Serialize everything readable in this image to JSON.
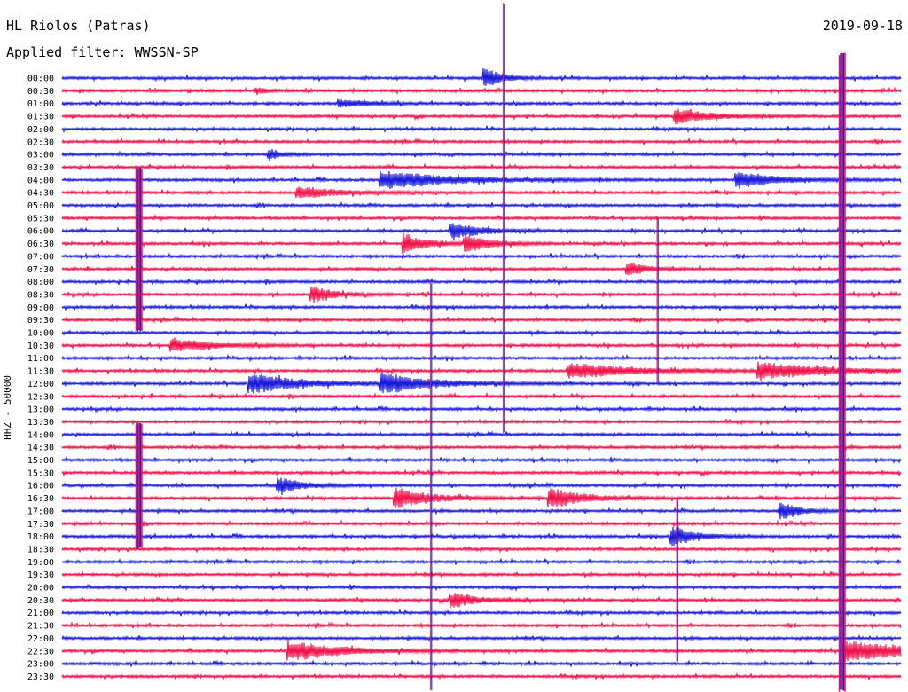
{
  "header": {
    "station": "HL Riolos (Patras)",
    "filter": "Applied filter: WWSSN-SP",
    "date": "2019-09-18",
    "channel": "HHZ - 50000"
  },
  "colors": {
    "blue": "#1a1adb",
    "red": "#f0124a",
    "text": "#000000"
  },
  "chart_data": {
    "type": "line",
    "title": "HL Riolos (Patras)",
    "subtitle": "Applied filter: WWSSN-SP",
    "date": "2019-09-18",
    "ylabel": "HHZ - 50000",
    "rows": [
      "00:00",
      "00:30",
      "01:00",
      "01:30",
      "02:00",
      "02:30",
      "03:00",
      "03:30",
      "04:00",
      "04:30",
      "05:00",
      "05:30",
      "06:00",
      "06:30",
      "07:00",
      "07:30",
      "08:00",
      "08:30",
      "09:00",
      "09:30",
      "10:00",
      "10:30",
      "11:00",
      "11:30",
      "12:00",
      "12:30",
      "13:00",
      "13:30",
      "14:00",
      "14:30",
      "15:00",
      "15:30",
      "16:00",
      "16:30",
      "17:00",
      "17:30",
      "18:00",
      "18:30",
      "19:00",
      "19:30",
      "20:00",
      "20:30",
      "21:00",
      "21:30",
      "22:00",
      "22:30",
      "23:00",
      "23:30"
    ],
    "row_duration_min": 30,
    "series_colors": [
      "blue",
      "red"
    ],
    "events": [
      {
        "row": 0,
        "minute": 15.2,
        "amp": 1.0,
        "dur": 0.6
      },
      {
        "row": 1,
        "minute": 7.0,
        "amp": 0.3,
        "dur": 0.4
      },
      {
        "row": 2,
        "minute": 10.0,
        "amp": 0.35,
        "dur": 1.2
      },
      {
        "row": 3,
        "minute": 22.0,
        "amp": 0.8,
        "dur": 1.2
      },
      {
        "row": 6,
        "minute": 7.5,
        "amp": 0.5,
        "dur": 0.4
      },
      {
        "row": 8,
        "minute": 11.5,
        "amp": 0.9,
        "dur": 2.5
      },
      {
        "row": 8,
        "minute": 24.2,
        "amp": 0.8,
        "dur": 1.5
      },
      {
        "row": 9,
        "minute": 8.5,
        "amp": 0.6,
        "dur": 1.5
      },
      {
        "row": 12,
        "minute": 14.0,
        "amp": 0.8,
        "dur": 1.0
      },
      {
        "row": 13,
        "minute": 12.3,
        "amp": 1.0,
        "dur": 0.8
      },
      {
        "row": 13,
        "minute": 14.5,
        "amp": 0.9,
        "dur": 0.8
      },
      {
        "row": 15,
        "minute": 20.3,
        "amp": 0.7,
        "dur": 0.6
      },
      {
        "row": 17,
        "minute": 9.0,
        "amp": 0.8,
        "dur": 0.8
      },
      {
        "row": 21,
        "minute": 4.0,
        "amp": 0.7,
        "dur": 1.3
      },
      {
        "row": 23,
        "minute": 18.2,
        "amp": 0.8,
        "dur": 2.2
      },
      {
        "row": 23,
        "minute": 25.0,
        "amp": 0.9,
        "dur": 2.2
      },
      {
        "row": 24,
        "minute": 6.8,
        "amp": 1.0,
        "dur": 1.8
      },
      {
        "row": 24,
        "minute": 11.5,
        "amp": 0.9,
        "dur": 1.8
      },
      {
        "row": 32,
        "minute": 7.8,
        "amp": 0.8,
        "dur": 0.8
      },
      {
        "row": 33,
        "minute": 12.0,
        "amp": 1.0,
        "dur": 1.2
      },
      {
        "row": 33,
        "minute": 17.5,
        "amp": 1.0,
        "dur": 1.2
      },
      {
        "row": 34,
        "minute": 25.8,
        "amp": 0.9,
        "dur": 0.6
      },
      {
        "row": 36,
        "minute": 21.9,
        "amp": 1.0,
        "dur": 0.8
      },
      {
        "row": 41,
        "minute": 14.0,
        "amp": 0.8,
        "dur": 0.8
      },
      {
        "row": 45,
        "minute": 8.2,
        "amp": 1.0,
        "dur": 1.8
      },
      {
        "row": 45,
        "minute": 28.0,
        "amp": 1.0,
        "dur": 2.8
      }
    ],
    "spikes": [
      {
        "minute": 2.75,
        "from_row": 7,
        "to_row": 20,
        "amp": 1.0
      },
      {
        "minute": 2.75,
        "from_row": 27,
        "to_row": 37,
        "amp": 1.0
      },
      {
        "minute": 15.8,
        "from_row": -6,
        "to_row": 28,
        "amp": 0.5
      },
      {
        "minute": 13.2,
        "from_row": 16,
        "to_row": 53,
        "amp": 0.6
      },
      {
        "minute": 21.3,
        "from_row": 11,
        "to_row": 24,
        "amp": 0.5
      },
      {
        "minute": 22.0,
        "from_row": 33,
        "to_row": 46,
        "amp": 0.5
      },
      {
        "minute": 27.9,
        "from_row": -2,
        "to_row": 54,
        "amp": 1.0
      }
    ]
  }
}
